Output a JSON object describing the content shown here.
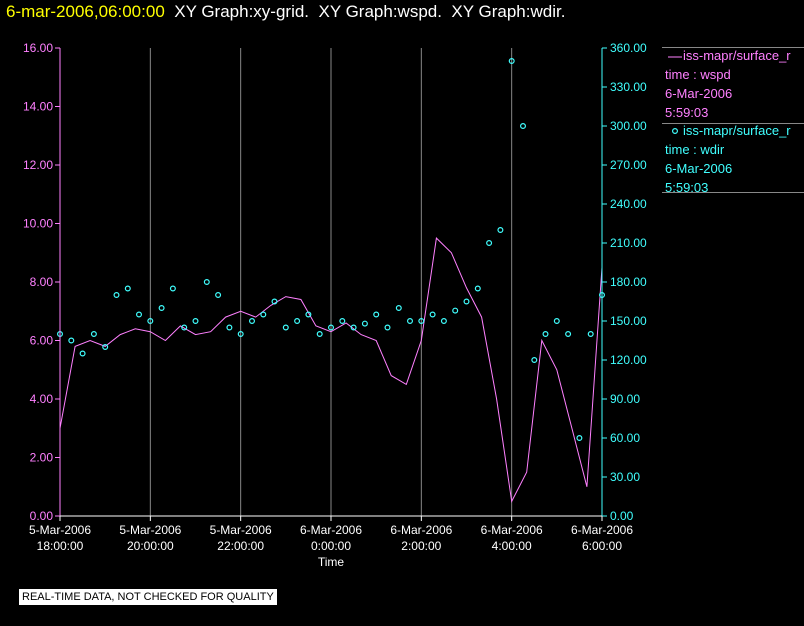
{
  "header": {
    "timestamp": "6-mar-2006,06:00:00",
    "graphs": [
      "XY Graph:xy-grid.",
      "XY Graph:wspd.",
      "XY Graph:wdir."
    ]
  },
  "legend": [
    {
      "line1": "iss-mapr/surface_r",
      "line2": "time : wspd",
      "line3": "6-Mar-2006",
      "line4": "5:59:03",
      "color": "#ff80ff",
      "marker": "line"
    },
    {
      "line1": "iss-mapr/surface_r",
      "line2": "time : wdir",
      "line3": "6-Mar-2006",
      "line4": "5:59:03",
      "color": "#40ffff",
      "marker": "circle"
    }
  ],
  "notice": "REAL-TIME DATA, NOT CHECKED FOR QUALITY",
  "chart_data": {
    "type": "line",
    "xlabel": "Time",
    "x_ticks": [
      {
        "date": "5-Mar-2006",
        "time": "18:00:00"
      },
      {
        "date": "5-Mar-2006",
        "time": "20:00:00"
      },
      {
        "date": "5-Mar-2006",
        "time": "22:00:00"
      },
      {
        "date": "6-Mar-2006",
        "time": "0:00:00"
      },
      {
        "date": "6-Mar-2006",
        "time": "2:00:00"
      },
      {
        "date": "6-Mar-2006",
        "time": "4:00:00"
      },
      {
        "date": "6-Mar-2006",
        "time": "6:00:00"
      }
    ],
    "xlim": [
      "5-Mar-2006 18:00",
      "6-Mar-2006 06:00"
    ],
    "y_left": {
      "ticks": [
        "0.00",
        "2.00",
        "4.00",
        "6.00",
        "8.00",
        "10.00",
        "12.00",
        "14.00",
        "16.00"
      ],
      "ylim": [
        0,
        16
      ],
      "color": "#ff80ff"
    },
    "y_right": {
      "ticks": [
        "0.00",
        "30.00",
        "60.00",
        "90.00",
        "120.00",
        "150.00",
        "180.00",
        "210.00",
        "240.00",
        "270.00",
        "300.00",
        "330.00",
        "360.00"
      ],
      "ylim": [
        0,
        360
      ],
      "color": "#40ffff"
    },
    "vertical_grid": true,
    "series": [
      {
        "name": "wspd",
        "axis": "left",
        "style": "line",
        "x": [
          "18:00",
          "18:20",
          "18:40",
          "19:00",
          "19:20",
          "19:40",
          "20:00",
          "20:20",
          "20:40",
          "21:00",
          "21:20",
          "21:40",
          "22:00",
          "22:20",
          "22:40",
          "23:00",
          "23:20",
          "23:40",
          "0:00",
          "0:20",
          "0:40",
          "1:00",
          "1:20",
          "1:40",
          "2:00",
          "2:20",
          "2:40",
          "3:00",
          "3:20",
          "3:40",
          "4:00",
          "4:20",
          "4:40",
          "5:00",
          "5:20",
          "5:40",
          "6:00"
        ],
        "values": [
          3.0,
          5.8,
          6.0,
          5.8,
          6.2,
          6.4,
          6.3,
          6.0,
          6.5,
          6.2,
          6.3,
          6.8,
          7.0,
          6.8,
          7.2,
          7.5,
          7.4,
          6.5,
          6.3,
          6.6,
          6.2,
          6.0,
          4.8,
          4.5,
          6.0,
          9.5,
          9.0,
          7.8,
          6.8,
          4.0,
          0.5,
          1.5,
          6.0,
          5.0,
          3.0,
          1.0,
          8.5
        ]
      },
      {
        "name": "wdir",
        "axis": "right",
        "style": "circle",
        "x": [
          "18:00",
          "18:15",
          "18:30",
          "18:45",
          "19:00",
          "19:15",
          "19:30",
          "19:45",
          "20:00",
          "20:15",
          "20:30",
          "20:45",
          "21:00",
          "21:15",
          "21:30",
          "21:45",
          "22:00",
          "22:15",
          "22:30",
          "22:45",
          "23:00",
          "23:15",
          "23:30",
          "23:45",
          "0:00",
          "0:15",
          "0:30",
          "0:45",
          "1:00",
          "1:15",
          "1:30",
          "1:45",
          "2:00",
          "2:15",
          "2:30",
          "2:45",
          "3:00",
          "3:15",
          "3:30",
          "3:45",
          "4:00",
          "4:15",
          "4:30",
          "4:45",
          "5:00",
          "5:15",
          "5:30",
          "5:45",
          "6:00"
        ],
        "values": [
          140,
          135,
          125,
          140,
          130,
          170,
          175,
          155,
          150,
          160,
          175,
          145,
          150,
          180,
          170,
          145,
          140,
          150,
          155,
          165,
          145,
          150,
          155,
          140,
          145,
          150,
          145,
          148,
          155,
          145,
          160,
          150,
          150,
          155,
          150,
          158,
          165,
          175,
          210,
          220,
          350,
          300,
          120,
          140,
          150,
          140,
          60,
          140,
          170
        ]
      }
    ]
  }
}
